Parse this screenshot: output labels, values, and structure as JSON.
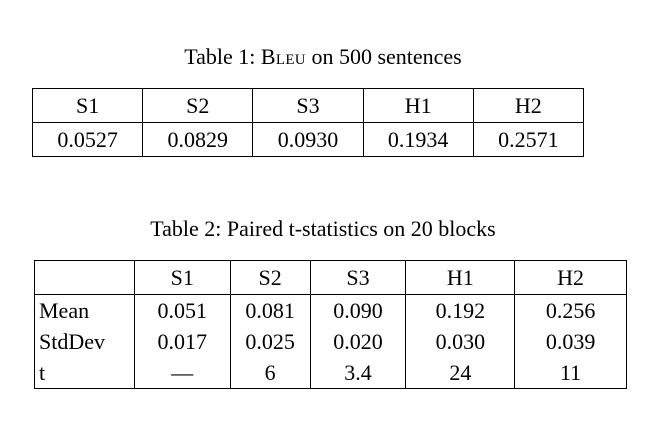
{
  "table1": {
    "caption_prefix": "Table 1: ",
    "caption_sc": "Bleu",
    "caption_suffix": " on 500 sentences",
    "headers": [
      "S1",
      "S2",
      "S3",
      "H1",
      "H2"
    ],
    "values": [
      "0.0527",
      "0.0829",
      "0.0930",
      "0.1934",
      "0.2571"
    ]
  },
  "table2": {
    "caption": "Table 2: Paired t-statistics on 20 blocks",
    "headers": [
      "",
      "S1",
      "S2",
      "S3",
      "H1",
      "H2"
    ],
    "rows": [
      {
        "label": "Mean",
        "cells": [
          "0.051",
          "0.081",
          "0.090",
          "0.192",
          "0.256"
        ]
      },
      {
        "label": "StdDev",
        "cells": [
          "0.017",
          "0.025",
          "0.020",
          "0.030",
          "0.039"
        ]
      },
      {
        "label": "t",
        "cells": [
          "—",
          "6",
          "3.4",
          "24",
          "11"
        ]
      }
    ]
  }
}
